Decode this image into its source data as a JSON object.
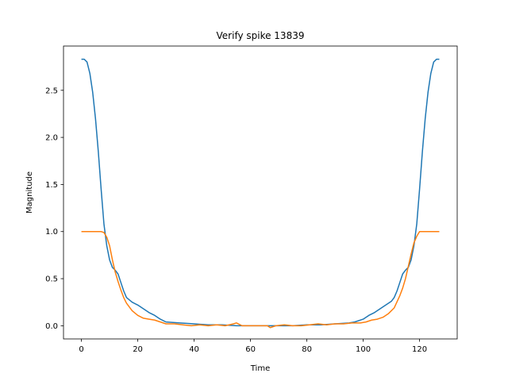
{
  "chart_data": {
    "type": "line",
    "title": "Verify spike 13839",
    "xlabel": "Time",
    "ylabel": "Magnitude",
    "xlim": [
      -6.35,
      133.35
    ],
    "ylim": [
      -0.14,
      2.97
    ],
    "xticks": [
      0,
      20,
      40,
      60,
      80,
      100,
      120
    ],
    "xtick_labels": [
      "0",
      "20",
      "40",
      "60",
      "80",
      "100",
      "120"
    ],
    "yticks": [
      0.0,
      0.5,
      1.0,
      1.5,
      2.0,
      2.5
    ],
    "ytick_labels": [
      "0.0",
      "0.5",
      "1.0",
      "1.5",
      "2.0",
      "2.5"
    ],
    "grid": false,
    "legend": "none",
    "series": [
      {
        "color": "#1f77b4",
        "x": [
          0,
          1,
          2,
          3,
          4,
          5,
          6,
          7,
          8,
          9,
          10,
          11,
          12,
          13,
          14,
          15,
          16,
          18,
          20,
          22,
          24,
          26,
          28,
          30,
          35,
          40,
          45,
          50,
          55,
          60,
          65,
          70,
          75,
          80,
          85,
          90,
          95,
          97,
          100,
          102,
          104,
          106,
          108,
          110,
          111,
          112,
          113,
          114,
          115,
          116,
          117,
          118,
          119,
          120,
          121,
          122,
          123,
          124,
          125,
          126,
          127
        ],
        "y": [
          2.83,
          2.83,
          2.8,
          2.68,
          2.48,
          2.2,
          1.85,
          1.45,
          1.08,
          0.85,
          0.7,
          0.62,
          0.59,
          0.55,
          0.46,
          0.37,
          0.3,
          0.25,
          0.22,
          0.18,
          0.14,
          0.11,
          0.07,
          0.04,
          0.03,
          0.02,
          0.01,
          0.01,
          0.0,
          0.0,
          0.0,
          0.0,
          0.0,
          0.01,
          0.01,
          0.02,
          0.03,
          0.04,
          0.07,
          0.11,
          0.14,
          0.18,
          0.22,
          0.26,
          0.3,
          0.37,
          0.46,
          0.55,
          0.59,
          0.62,
          0.7,
          0.85,
          1.08,
          1.45,
          1.85,
          2.2,
          2.48,
          2.68,
          2.8,
          2.83,
          2.83
        ]
      },
      {
        "color": "#ff7f0e",
        "x": [
          0,
          2,
          4,
          6,
          7,
          8,
          9,
          10,
          11,
          12,
          13,
          14,
          15,
          16,
          18,
          20,
          22,
          24,
          26,
          28,
          30,
          33,
          36,
          39,
          42,
          45,
          48,
          51,
          54,
          55,
          57,
          60,
          63,
          66,
          67,
          69,
          72,
          75,
          78,
          81,
          84,
          87,
          90,
          93,
          96,
          99,
          101,
          103,
          105,
          107,
          109,
          111,
          113,
          114,
          115,
          116,
          117,
          118,
          119,
          120,
          122,
          124,
          127
        ],
        "y": [
          1.0,
          1.0,
          1.0,
          1.0,
          1.0,
          0.99,
          0.94,
          0.85,
          0.7,
          0.57,
          0.47,
          0.38,
          0.3,
          0.24,
          0.16,
          0.11,
          0.08,
          0.07,
          0.06,
          0.04,
          0.02,
          0.02,
          0.01,
          0.0,
          0.01,
          0.0,
          0.01,
          0.0,
          0.02,
          0.03,
          0.0,
          0.0,
          0.0,
          0.0,
          -0.02,
          0.0,
          0.01,
          0.0,
          0.0,
          0.01,
          0.02,
          0.01,
          0.02,
          0.02,
          0.03,
          0.03,
          0.04,
          0.06,
          0.07,
          0.09,
          0.13,
          0.19,
          0.32,
          0.4,
          0.5,
          0.63,
          0.76,
          0.88,
          0.95,
          1.0,
          1.0,
          1.0,
          1.0
        ]
      }
    ]
  }
}
